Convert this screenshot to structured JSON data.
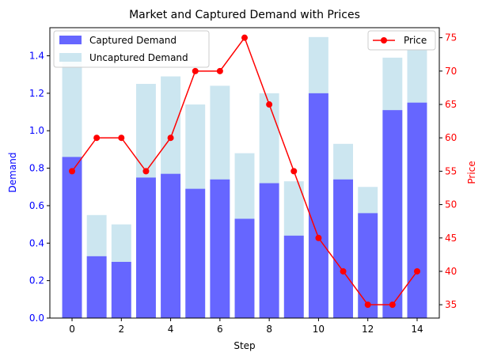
{
  "chart_data": {
    "type": "bar",
    "title": "Market and Captured Demand with Prices",
    "xlabel": "Step",
    "ylabel_left": "Demand",
    "ylabel_right": "Price",
    "x": [
      0,
      1,
      2,
      3,
      4,
      5,
      6,
      7,
      8,
      9,
      10,
      11,
      12,
      13,
      14
    ],
    "x_ticks": [
      0,
      2,
      4,
      6,
      8,
      10,
      12,
      14
    ],
    "xlim": [
      -0.9,
      14.9
    ],
    "ylim_left": [
      0,
      1.55
    ],
    "yticks_left": [
      0.0,
      0.2,
      0.4,
      0.6,
      0.8,
      1.0,
      1.2,
      1.4
    ],
    "ylim_right": [
      33,
      76.5
    ],
    "yticks_right": [
      35,
      40,
      45,
      50,
      55,
      60,
      65,
      70,
      75
    ],
    "grid": false,
    "series": [
      {
        "name": "Captured Demand",
        "kind": "bar",
        "axis": "left",
        "color": "#6666ff",
        "values": [
          0.86,
          0.33,
          0.3,
          0.75,
          0.77,
          0.69,
          0.74,
          0.53,
          0.72,
          0.44,
          1.2,
          0.74,
          0.56,
          1.11,
          1.15
        ]
      },
      {
        "name": "Uncaptured Demand",
        "kind": "bar-stacked-total",
        "axis": "left",
        "color": "#cce6f0",
        "totals": [
          1.4,
          0.55,
          0.5,
          1.25,
          1.29,
          1.14,
          1.24,
          0.88,
          1.2,
          0.73,
          1.5,
          0.93,
          0.7,
          1.39,
          1.43
        ]
      },
      {
        "name": "Price",
        "kind": "line",
        "axis": "right",
        "color": "#ff0000",
        "values": [
          55,
          60,
          60,
          55,
          60,
          70,
          70,
          75,
          65,
          55,
          45,
          40,
          35,
          35,
          40
        ]
      }
    ],
    "left_axis_color": "#0000ff",
    "right_axis_color": "#ff0000",
    "legend_left_position": "upper-left",
    "legend_right_position": "upper-right"
  }
}
